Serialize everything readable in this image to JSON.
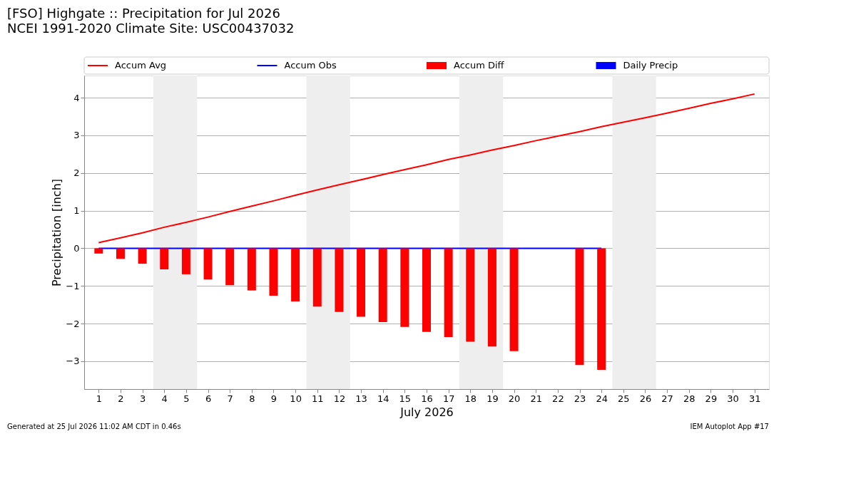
{
  "chart_data": {
    "type": "bar",
    "title": "[FSO] Highgate :: Precipitation for Jul 2026",
    "subtitle": "NCEI 1991-2020 Climate Site: USC00437032",
    "xlabel": "July 2026",
    "ylabel": "Precipitation [inch]",
    "x": [
      1,
      2,
      3,
      4,
      5,
      6,
      7,
      8,
      9,
      10,
      11,
      12,
      13,
      14,
      15,
      16,
      17,
      18,
      19,
      20,
      21,
      22,
      23,
      24,
      25,
      26,
      27,
      28,
      29,
      30,
      31
    ],
    "series": [
      {
        "name": "Accum Avg",
        "type": "line",
        "color": "#ff0000",
        "values": [
          0.15,
          0.28,
          0.41,
          0.56,
          0.69,
          0.83,
          0.98,
          1.12,
          1.26,
          1.41,
          1.55,
          1.69,
          1.82,
          1.96,
          2.09,
          2.22,
          2.36,
          2.48,
          2.61,
          2.73,
          2.86,
          2.98,
          3.1,
          3.23,
          3.35,
          3.47,
          3.59,
          3.72,
          3.85,
          3.97,
          4.1
        ]
      },
      {
        "name": "Accum Obs",
        "type": "line",
        "color": "#0000ff",
        "values": [
          0,
          0,
          0,
          0,
          0,
          0,
          0,
          0,
          0,
          0,
          0,
          0,
          0,
          0,
          0,
          0,
          0,
          0,
          0,
          0,
          null,
          null,
          0,
          0,
          null,
          null,
          null,
          null,
          null,
          null,
          null
        ]
      },
      {
        "name": "Accum Diff",
        "type": "bar",
        "color": "#ff0000",
        "values": [
          -0.14,
          -0.28,
          -0.41,
          -0.56,
          -0.69,
          -0.83,
          -0.98,
          -1.12,
          -1.26,
          -1.41,
          -1.55,
          -1.69,
          -1.82,
          -1.96,
          -2.09,
          -2.22,
          -2.36,
          -2.48,
          -2.61,
          -2.73,
          null,
          null,
          -3.1,
          -3.23,
          null,
          null,
          null,
          null,
          null,
          null,
          null
        ]
      },
      {
        "name": "Daily Precip",
        "type": "bar",
        "color": "#0000ff",
        "values": [
          0,
          0,
          0,
          0,
          0,
          0,
          0,
          0,
          0,
          0,
          0,
          0,
          0,
          0,
          0,
          0,
          0,
          0,
          0,
          0,
          null,
          null,
          0,
          0,
          null,
          null,
          null,
          null,
          null,
          null,
          null
        ]
      }
    ],
    "xlim": [
      0.5,
      31.5
    ],
    "xticks": [
      1,
      2,
      3,
      4,
      5,
      6,
      7,
      8,
      9,
      10,
      11,
      12,
      13,
      14,
      15,
      16,
      17,
      18,
      19,
      20,
      21,
      22,
      23,
      24,
      25,
      26,
      27,
      28,
      29,
      30,
      31
    ],
    "ylim": [
      -3.74,
      4.59
    ],
    "yticks": [
      {
        "value": -3,
        "label": "−3"
      },
      {
        "value": -2,
        "label": "−2"
      },
      {
        "value": -1,
        "label": "−1"
      },
      0,
      1,
      2,
      3,
      4
    ],
    "bands": [
      {
        "axis": "x",
        "from": 3.5,
        "to": 5.5,
        "color": "#eeeeee"
      },
      {
        "axis": "x",
        "from": 10.5,
        "to": 12.5,
        "color": "#eeeeee"
      },
      {
        "axis": "x",
        "from": 17.5,
        "to": 19.5,
        "color": "#eeeeee"
      },
      {
        "axis": "x",
        "from": 24.5,
        "to": 26.5,
        "color": "#eeeeee"
      }
    ],
    "grid": "y",
    "legend": "top",
    "annotations": [
      "Generated at 25 Jul 2026 11:02 AM CDT in 0.46s",
      "IEM Autoplot App #17"
    ]
  }
}
